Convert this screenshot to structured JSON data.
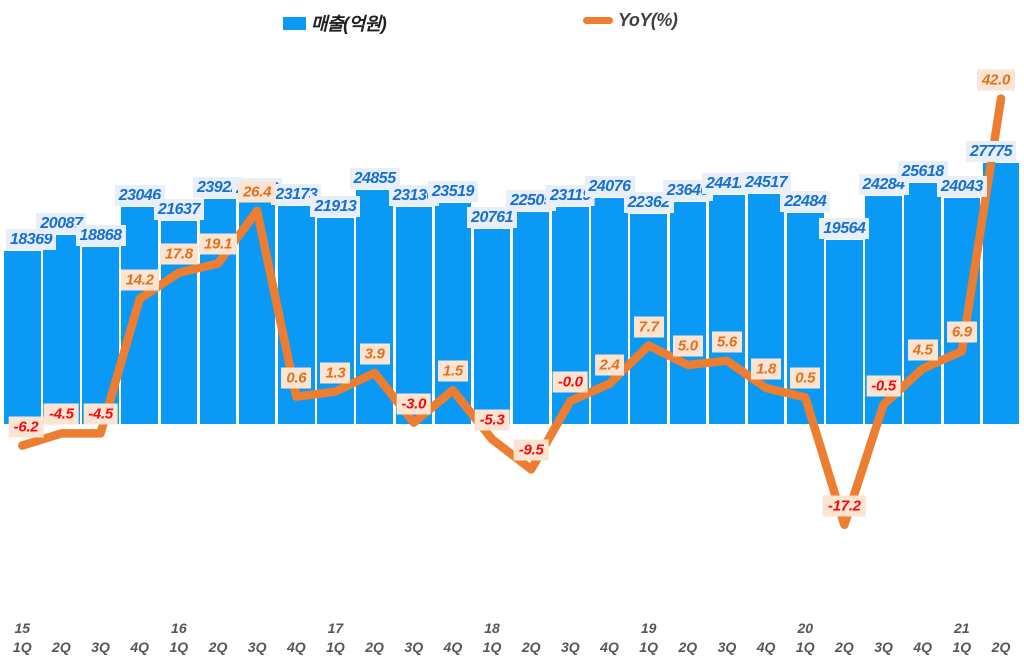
{
  "colors": {
    "bar_fill": "#0A99F5",
    "line_stroke": "#ED7D31",
    "bar_label_text": "#1470D4",
    "bar_label_bg": "#E9EFF8",
    "yoy_label_bg": "#FCE4D2",
    "yoy_positive_text": "#E0701C",
    "yoy_negative_text": "#F20A0A",
    "axis_text": "#565656",
    "legend_revenue_text": "#1F1F1F",
    "legend_yoy_text": "#404040"
  },
  "chart_data": {
    "type": "bar",
    "title": "",
    "grid": "off",
    "legend_position": "top",
    "categories": [
      "1Q",
      "2Q",
      "3Q",
      "4Q",
      "1Q",
      "2Q",
      "3Q",
      "4Q",
      "1Q",
      "2Q",
      "3Q",
      "4Q",
      "1Q",
      "2Q",
      "3Q",
      "4Q",
      "1Q",
      "2Q",
      "3Q",
      "4Q",
      "1Q",
      "2Q",
      "3Q",
      "4Q",
      "1Q",
      "2Q"
    ],
    "year_labels": [
      "15",
      "",
      "",
      "",
      "16",
      "",
      "",
      "",
      "17",
      "",
      "",
      "",
      "18",
      "",
      "",
      "",
      "19",
      "",
      "",
      "",
      "20",
      "",
      "",
      "",
      "21",
      ""
    ],
    "bar_axis": {
      "min": 0,
      "max": 31000
    },
    "line_axis": {
      "unit": "%",
      "min": -20,
      "max": 45
    },
    "series": [
      {
        "name": "매출(억원)",
        "type": "bar",
        "values": [
          18369,
          20087,
          18868,
          23046,
          21637,
          23922,
          23856,
          23173,
          21913,
          24855,
          23130,
          23519,
          20761,
          22505,
          23119,
          24076,
          22362,
          23640,
          24412,
          24517,
          22484,
          19564,
          24284,
          25618,
          24043,
          27775
        ]
      },
      {
        "name": "YoY(%)",
        "type": "line",
        "values": [
          -6.2,
          -4.5,
          -4.5,
          14.2,
          17.8,
          19.1,
          26.4,
          0.6,
          1.3,
          3.9,
          -3.0,
          1.5,
          -5.3,
          -9.5,
          -0.0,
          2.4,
          7.7,
          5.0,
          5.6,
          1.8,
          0.5,
          -17.2,
          -0.5,
          4.5,
          6.9,
          42.0
        ],
        "display_labels": [
          "-6.2",
          "-4.5",
          "-4.5",
          "14.2",
          "17.8",
          "19.1",
          "26.4",
          "0.6",
          "1.3",
          "3.9",
          "-3.0",
          "1.5",
          "-5.3",
          "-9.5",
          "-0.0",
          "2.4",
          "7.7",
          "5.0",
          "5.6",
          "1.8",
          "0.5",
          "-17.2",
          "-0.5",
          "4.5",
          "6.9",
          "42.0"
        ]
      }
    ]
  }
}
